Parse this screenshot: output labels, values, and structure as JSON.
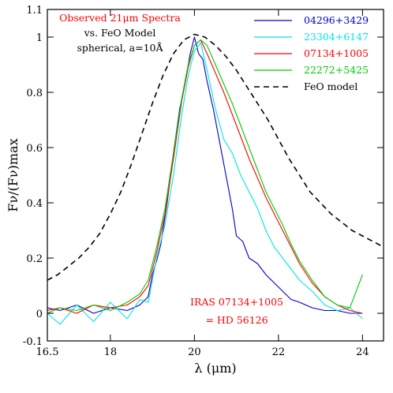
{
  "chart_data": {
    "type": "line",
    "title": "Observed 21μm Spectra",
    "subtitle_lines": [
      "vs. FeO Model",
      "spherical, a=10Å"
    ],
    "xlabel": "λ (μm)",
    "ylabel": "Fν/(Fν)max",
    "xlim": [
      16.5,
      24.5
    ],
    "ylim": [
      -0.1,
      1.1
    ],
    "xticks": [
      16.5,
      18,
      20,
      22,
      24
    ],
    "yticks": [
      -0.1,
      0,
      0.2,
      0.4,
      0.6,
      0.8,
      1,
      1.1
    ],
    "legend_position": "top-right",
    "annotation_lines": [
      "IRAS 07134+1005",
      "= HD 56126"
    ],
    "colors": {
      "title": "#ff0000",
      "annotation": "#ff0000"
    },
    "series": [
      {
        "name": "04296+3429",
        "color": "#0000cc",
        "style": "solid",
        "x": [
          16.5,
          16.8,
          17.2,
          17.6,
          18.0,
          18.4,
          18.7,
          18.9,
          19.0,
          19.1,
          19.2,
          19.35,
          19.5,
          19.65,
          19.8,
          19.9,
          20.0,
          20.1,
          20.2,
          20.3,
          20.45,
          20.6,
          20.75,
          20.9,
          21.0,
          21.15,
          21.3,
          21.5,
          21.7,
          21.9,
          22.1,
          22.3,
          22.5,
          22.8,
          23.1,
          23.4,
          23.7,
          24.0
        ],
        "y": [
          0.02,
          0.01,
          0.03,
          0.0,
          0.02,
          0.01,
          0.03,
          0.06,
          0.14,
          0.19,
          0.25,
          0.4,
          0.58,
          0.74,
          0.85,
          0.94,
          1.0,
          0.94,
          0.92,
          0.84,
          0.74,
          0.62,
          0.5,
          0.38,
          0.28,
          0.26,
          0.2,
          0.18,
          0.14,
          0.11,
          0.08,
          0.05,
          0.04,
          0.02,
          0.01,
          0.01,
          0.0,
          0.0
        ]
      },
      {
        "name": "23304+6147",
        "color": "#00e5e5",
        "style": "solid",
        "x": [
          16.5,
          16.8,
          17.2,
          17.6,
          18.0,
          18.4,
          18.7,
          18.9,
          19.1,
          19.3,
          19.5,
          19.7,
          19.85,
          20.0,
          20.15,
          20.3,
          20.5,
          20.7,
          20.9,
          21.1,
          21.3,
          21.5,
          21.7,
          21.9,
          22.1,
          22.3,
          22.5,
          22.8,
          23.1,
          23.4,
          23.7,
          24.0
        ],
        "y": [
          0.0,
          -0.04,
          0.03,
          -0.03,
          0.04,
          -0.02,
          0.05,
          0.04,
          0.2,
          0.32,
          0.5,
          0.72,
          0.86,
          0.95,
          0.98,
          0.88,
          0.74,
          0.63,
          0.58,
          0.5,
          0.44,
          0.38,
          0.3,
          0.24,
          0.2,
          0.16,
          0.12,
          0.08,
          0.03,
          0.01,
          0.02,
          -0.02
        ]
      },
      {
        "name": "07134+1005",
        "color": "#ff0000",
        "style": "solid",
        "x": [
          16.5,
          16.8,
          17.2,
          17.6,
          18.0,
          18.4,
          18.7,
          18.9,
          19.1,
          19.3,
          19.5,
          19.7,
          19.85,
          20.0,
          20.15,
          20.3,
          20.5,
          20.7,
          20.9,
          21.1,
          21.3,
          21.5,
          21.7,
          21.9,
          22.1,
          22.3,
          22.5,
          22.8,
          23.1,
          23.4,
          23.7,
          24.0
        ],
        "y": [
          0.01,
          0.02,
          0.0,
          0.03,
          0.02,
          0.03,
          0.06,
          0.1,
          0.22,
          0.36,
          0.56,
          0.77,
          0.89,
          0.97,
          0.99,
          0.94,
          0.87,
          0.8,
          0.72,
          0.64,
          0.56,
          0.49,
          0.42,
          0.36,
          0.3,
          0.24,
          0.18,
          0.11,
          0.06,
          0.03,
          0.01,
          0.0
        ]
      },
      {
        "name": "22272+5425",
        "color": "#00cc00",
        "style": "solid",
        "x": [
          16.5,
          16.8,
          17.2,
          17.6,
          18.0,
          18.4,
          18.7,
          18.9,
          19.1,
          19.3,
          19.5,
          19.7,
          19.85,
          20.0,
          20.15,
          20.3,
          20.5,
          20.7,
          20.9,
          21.1,
          21.3,
          21.5,
          21.7,
          21.9,
          22.1,
          22.3,
          22.5,
          22.8,
          23.1,
          23.4,
          23.7,
          24.0
        ],
        "y": [
          0.0,
          0.02,
          0.01,
          0.03,
          0.01,
          0.04,
          0.07,
          0.12,
          0.24,
          0.38,
          0.58,
          0.78,
          0.9,
          0.97,
          0.99,
          0.97,
          0.9,
          0.83,
          0.76,
          0.68,
          0.6,
          0.52,
          0.44,
          0.38,
          0.32,
          0.25,
          0.19,
          0.12,
          0.06,
          0.03,
          0.02,
          0.14
        ]
      },
      {
        "name": "FeO model",
        "color": "#000000",
        "style": "dashed",
        "x": [
          16.5,
          16.75,
          17.0,
          17.25,
          17.5,
          17.75,
          18.0,
          18.25,
          18.5,
          18.75,
          19.0,
          19.25,
          19.5,
          19.75,
          20.0,
          20.25,
          20.5,
          20.75,
          21.0,
          21.25,
          21.5,
          21.75,
          22.0,
          22.25,
          22.5,
          22.75,
          23.0,
          23.25,
          23.5,
          23.75,
          24.0,
          24.25,
          24.5
        ],
        "y": [
          0.12,
          0.14,
          0.17,
          0.2,
          0.24,
          0.29,
          0.36,
          0.44,
          0.54,
          0.65,
          0.76,
          0.86,
          0.94,
          0.99,
          1.01,
          1.0,
          0.97,
          0.93,
          0.88,
          0.82,
          0.76,
          0.7,
          0.63,
          0.56,
          0.5,
          0.44,
          0.4,
          0.36,
          0.33,
          0.3,
          0.28,
          0.26,
          0.24
        ]
      }
    ]
  }
}
